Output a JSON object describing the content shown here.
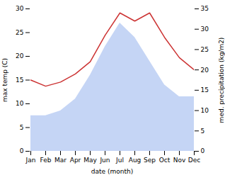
{
  "chart_data": {
    "type": "line",
    "categories": [
      "Jan",
      "Feb",
      "Mar",
      "Apr",
      "May",
      "Jun",
      "Jul",
      "Aug",
      "Sep",
      "Oct",
      "Nov",
      "Dec"
    ],
    "series": [
      {
        "type": "area",
        "color": "#c5d5f5",
        "values": [
          7.5,
          7.5,
          8.5,
          11.0,
          16.0,
          22.0,
          27.0,
          24.0,
          19.0,
          14.0,
          11.5,
          11.5
        ]
      },
      {
        "type": "line",
        "color": "#cc3333",
        "axis": "y2",
        "values": [
          17.5,
          16.0,
          17.0,
          19.0,
          22.0,
          28.5,
          34.0,
          32.0,
          34.0,
          28.0,
          23.0,
          20.0
        ]
      }
    ],
    "xlabel": "date (month)",
    "ylabel": "max temp (C)",
    "y2label": "med. precipitation (kg/m2)",
    "ylim": [
      0,
      30
    ],
    "yticks": [
      0,
      5,
      10,
      15,
      20,
      25,
      30
    ],
    "y2lim": [
      0,
      35
    ],
    "y2ticks": [
      0,
      5,
      10,
      15,
      20,
      25,
      30,
      35
    ],
    "grid": false
  }
}
